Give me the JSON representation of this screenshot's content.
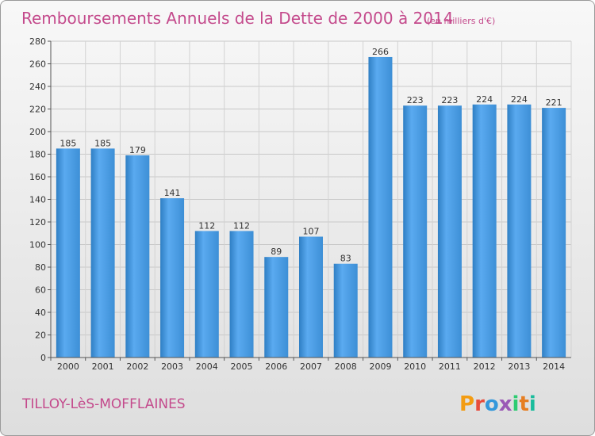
{
  "chart_data": {
    "type": "bar",
    "title": "Remboursements Annuels de la Dette de 2000 à 2014",
    "subtitle": "(en milliers d'€)",
    "categories": [
      "2000",
      "2001",
      "2002",
      "2003",
      "2004",
      "2005",
      "2006",
      "2007",
      "2008",
      "2009",
      "2010",
      "2011",
      "2012",
      "2013",
      "2014"
    ],
    "values": [
      185,
      185,
      179,
      141,
      112,
      112,
      89,
      107,
      83,
      266,
      223,
      223,
      224,
      224,
      221
    ],
    "ylim": [
      0,
      280
    ],
    "yticks": [
      0,
      20,
      40,
      60,
      80,
      100,
      120,
      140,
      160,
      180,
      200,
      220,
      240,
      260,
      280
    ],
    "grid": true,
    "bar_color": "#4a9ee3"
  },
  "footer": {
    "commune": "TILLOY-LèS-MOFFLAINES",
    "brand": "Proxiti"
  },
  "colors": {
    "title": "#c44a8c",
    "brand_letters": [
      "#f39c12",
      "#e74c3c",
      "#3498db",
      "#9b59b6",
      "#2ecc71",
      "#e67e22",
      "#1abc9c"
    ]
  }
}
